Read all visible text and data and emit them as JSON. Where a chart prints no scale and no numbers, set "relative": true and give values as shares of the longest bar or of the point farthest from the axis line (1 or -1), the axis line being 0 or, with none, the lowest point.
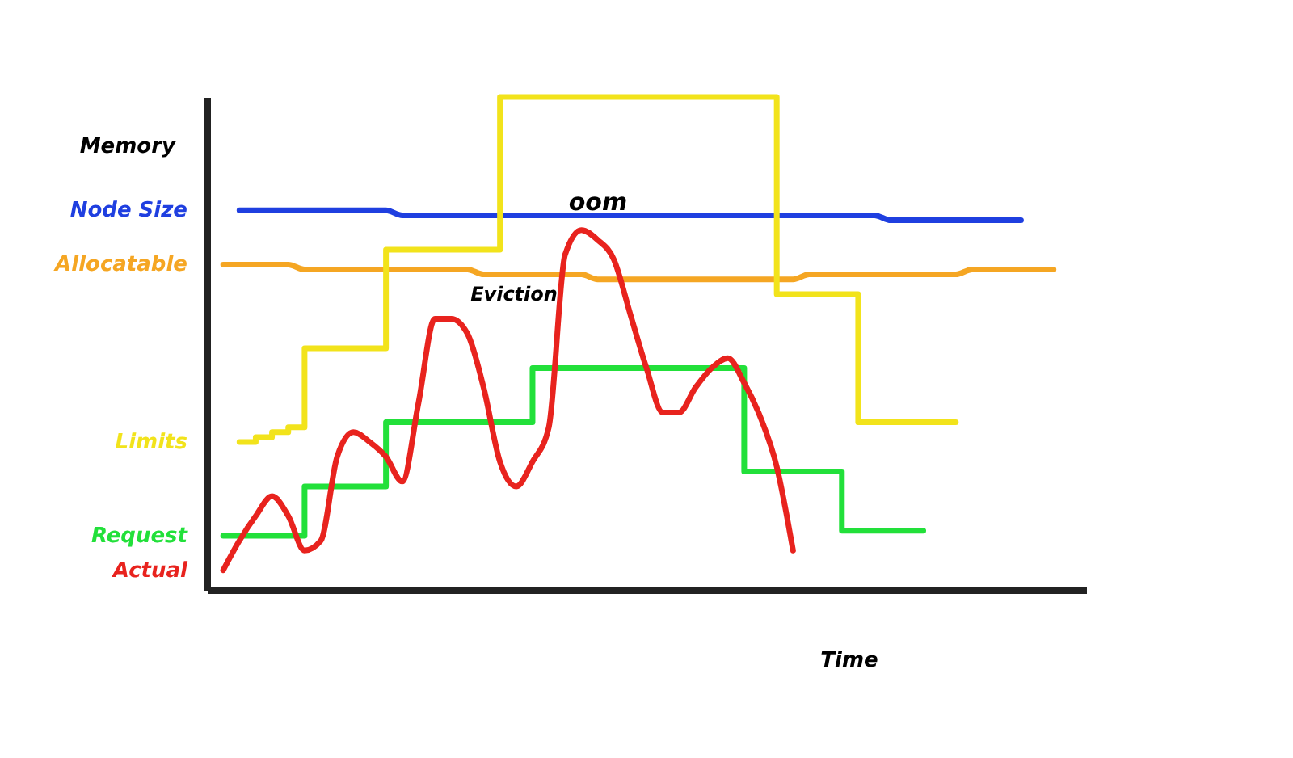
{
  "chart_data": {
    "type": "line",
    "relative": true,
    "xlabel": "Time",
    "ylabel": "Memory",
    "grid": false,
    "legend": false,
    "line_style": "solid",
    "marker": "none",
    "categories": [
      null,
      null,
      null,
      null,
      null,
      null,
      null,
      null,
      null,
      null,
      null,
      null,
      null,
      null,
      null,
      null,
      null,
      null,
      null,
      null,
      null,
      null,
      null,
      null,
      null,
      null,
      null,
      null,
      null,
      null,
      null,
      null,
      null,
      null,
      null,
      null,
      null,
      null,
      null,
      null,
      null,
      null,
      null,
      null,
      null,
      null,
      null,
      null,
      null,
      null,
      null,
      null,
      null
    ],
    "annotations": [
      "oom",
      "Eviction"
    ],
    "series": [
      {
        "name": "Node Size",
        "color": "#1f3fe0",
        "values": [
          null,
          0.77,
          0.77,
          0.77,
          0.77,
          0.77,
          0.77,
          0.77,
          0.77,
          0.77,
          0.77,
          0.76,
          0.76,
          0.76,
          0.76,
          0.76,
          0.76,
          0.76,
          0.76,
          0.76,
          0.76,
          0.76,
          0.76,
          0.76,
          0.76,
          0.76,
          0.76,
          0.76,
          0.76,
          0.76,
          0.76,
          0.76,
          0.76,
          0.76,
          0.76,
          0.76,
          0.76,
          0.76,
          0.76,
          0.76,
          0.76,
          0.75,
          0.75,
          0.75,
          0.75,
          0.75,
          0.75,
          0.75,
          0.75,
          0.75,
          null,
          null,
          null
        ]
      },
      {
        "name": "Allocatable",
        "color": "#f5a623",
        "values": [
          0.66,
          0.66,
          0.66,
          0.66,
          0.66,
          0.65,
          0.65,
          0.65,
          0.65,
          0.65,
          0.65,
          0.65,
          0.65,
          0.65,
          0.65,
          0.65,
          0.64,
          0.64,
          0.64,
          0.64,
          0.64,
          0.64,
          0.64,
          0.63,
          0.63,
          0.63,
          0.63,
          0.63,
          0.63,
          0.63,
          0.63,
          0.63,
          0.63,
          0.63,
          0.63,
          0.63,
          0.64,
          0.64,
          0.64,
          0.64,
          0.64,
          0.64,
          0.64,
          0.64,
          0.64,
          0.64,
          0.65,
          0.65,
          0.65,
          0.65,
          0.65,
          0.65,
          null
        ]
      },
      {
        "name": "Limits",
        "color": "#f2e31b",
        "type": "step",
        "values": [
          null,
          0.3,
          0.31,
          0.32,
          0.33,
          0.49,
          0.49,
          0.49,
          0.49,
          0.49,
          0.69,
          0.69,
          0.69,
          0.69,
          0.69,
          0.69,
          0.69,
          1,
          1,
          1,
          1,
          1,
          1,
          1,
          1,
          1,
          1,
          1,
          1,
          1,
          1,
          1,
          1,
          1,
          0.6,
          0.6,
          0.6,
          0.6,
          0.6,
          0.34,
          0.34,
          0.34,
          0.34,
          0.34,
          0.34,
          0.34,
          null,
          null,
          null,
          null,
          null,
          null,
          null
        ]
      },
      {
        "name": "Request",
        "color": "#22e03a",
        "type": "step",
        "values": [
          0.11,
          0.11,
          0.11,
          0.11,
          0.11,
          0.21,
          0.21,
          0.21,
          0.21,
          0.21,
          0.34,
          0.34,
          0.34,
          0.34,
          0.34,
          0.34,
          0.34,
          0.34,
          0.34,
          0.45,
          0.45,
          0.45,
          0.45,
          0.45,
          0.45,
          0.45,
          0.45,
          0.45,
          0.45,
          0.45,
          0.45,
          0.45,
          0.24,
          0.24,
          0.24,
          0.24,
          0.24,
          0.24,
          0.12,
          0.12,
          0.12,
          0.12,
          0.12,
          0.12,
          null,
          null,
          null,
          null,
          null,
          null,
          null,
          null,
          null
        ]
      },
      {
        "name": "Actual",
        "color": "#e8231e",
        "values": [
          0.04,
          0.1,
          0.15,
          0.19,
          0.15,
          0.08,
          0.1,
          0.27,
          0.32,
          0.3,
          0.27,
          0.22,
          0.38,
          0.55,
          0.55,
          0.52,
          0.41,
          0.26,
          0.21,
          0.26,
          0.33,
          0.68,
          0.73,
          0.71,
          0.67,
          0.56,
          0.45,
          0.36,
          0.36,
          0.41,
          0.45,
          0.47,
          0.42,
          0.35,
          0.25,
          0.08,
          null,
          null,
          null,
          null,
          null,
          null,
          null,
          null,
          null,
          null,
          null,
          null,
          null,
          null,
          null,
          null,
          null
        ]
      }
    ]
  }
}
